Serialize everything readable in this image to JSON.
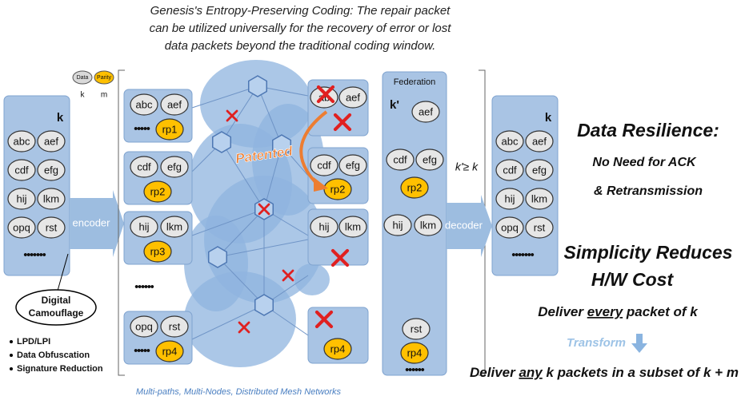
{
  "caption": [
    "Genesis's Entropy-Preserving Coding: The repair packet",
    "can be utilized universally for the recovery of error or lost",
    "data packets beyond the traditional coding window."
  ],
  "legend": {
    "data": "Data",
    "parity": "Parity",
    "data_symbol": "k",
    "parity_symbol": "m"
  },
  "source": {
    "label": "k",
    "packets": [
      "abc",
      "aef",
      "cdf",
      "efg",
      "hij",
      "lkm",
      "opq",
      "rst"
    ],
    "more": "•••••••"
  },
  "encoder": "encoder",
  "camouflage": {
    "title": [
      "Digital",
      "Camouflage"
    ],
    "bullets": [
      "LPD/LPI",
      "Data Obfuscation",
      "Signature Reduction"
    ]
  },
  "sent_groups": [
    {
      "data": [
        "abc",
        "aef"
      ],
      "more": "•••••",
      "parity": "rp1"
    },
    {
      "data": [
        "cdf",
        "efg"
      ],
      "parity": "rp2"
    },
    {
      "data": [
        "hij",
        "lkm"
      ],
      "parity": "rp3"
    },
    {
      "data": [
        "opq",
        "rst"
      ],
      "more": "•••••",
      "parity": "rp4"
    }
  ],
  "sent_more": "••••••",
  "patented": "Patented",
  "received_groups": [
    {
      "data": [
        "ab",
        "aef"
      ]
    },
    {
      "data": [
        "cdf",
        "efg"
      ],
      "parity": "rp2"
    },
    {
      "data": [
        "hij",
        "lkm"
      ]
    },
    {
      "parity": "rp4"
    }
  ],
  "federation": {
    "title": "Federation",
    "label": "k'",
    "packets": [
      "aef",
      "cdf",
      "efg",
      "rp2",
      "hij",
      "lkm",
      "rst",
      "rp4"
    ],
    "more": "••••••"
  },
  "condition": "k'≥ k",
  "decoder": "decoder",
  "output": {
    "label": "k",
    "packets": [
      "abc",
      "aef",
      "cdf",
      "efg",
      "hij",
      "lkm",
      "opq",
      "rst"
    ],
    "more": "•••••••"
  },
  "benefits": {
    "resilience_title": "Data Resilience:",
    "resilience_lines": [
      "No Need for ACK",
      "& Retransmission"
    ],
    "simplicity_lines": [
      "Simplicity Reduces",
      "H/W Cost"
    ],
    "deliver_every": [
      "Deliver ",
      "every",
      " packet of k"
    ],
    "transform": "Transform",
    "deliver_any": [
      "Deliver ",
      "any",
      " k packets in a subset of k + m"
    ]
  },
  "footer": "Multi-paths, Multi-Nodes, Distributed Mesh Networks"
}
